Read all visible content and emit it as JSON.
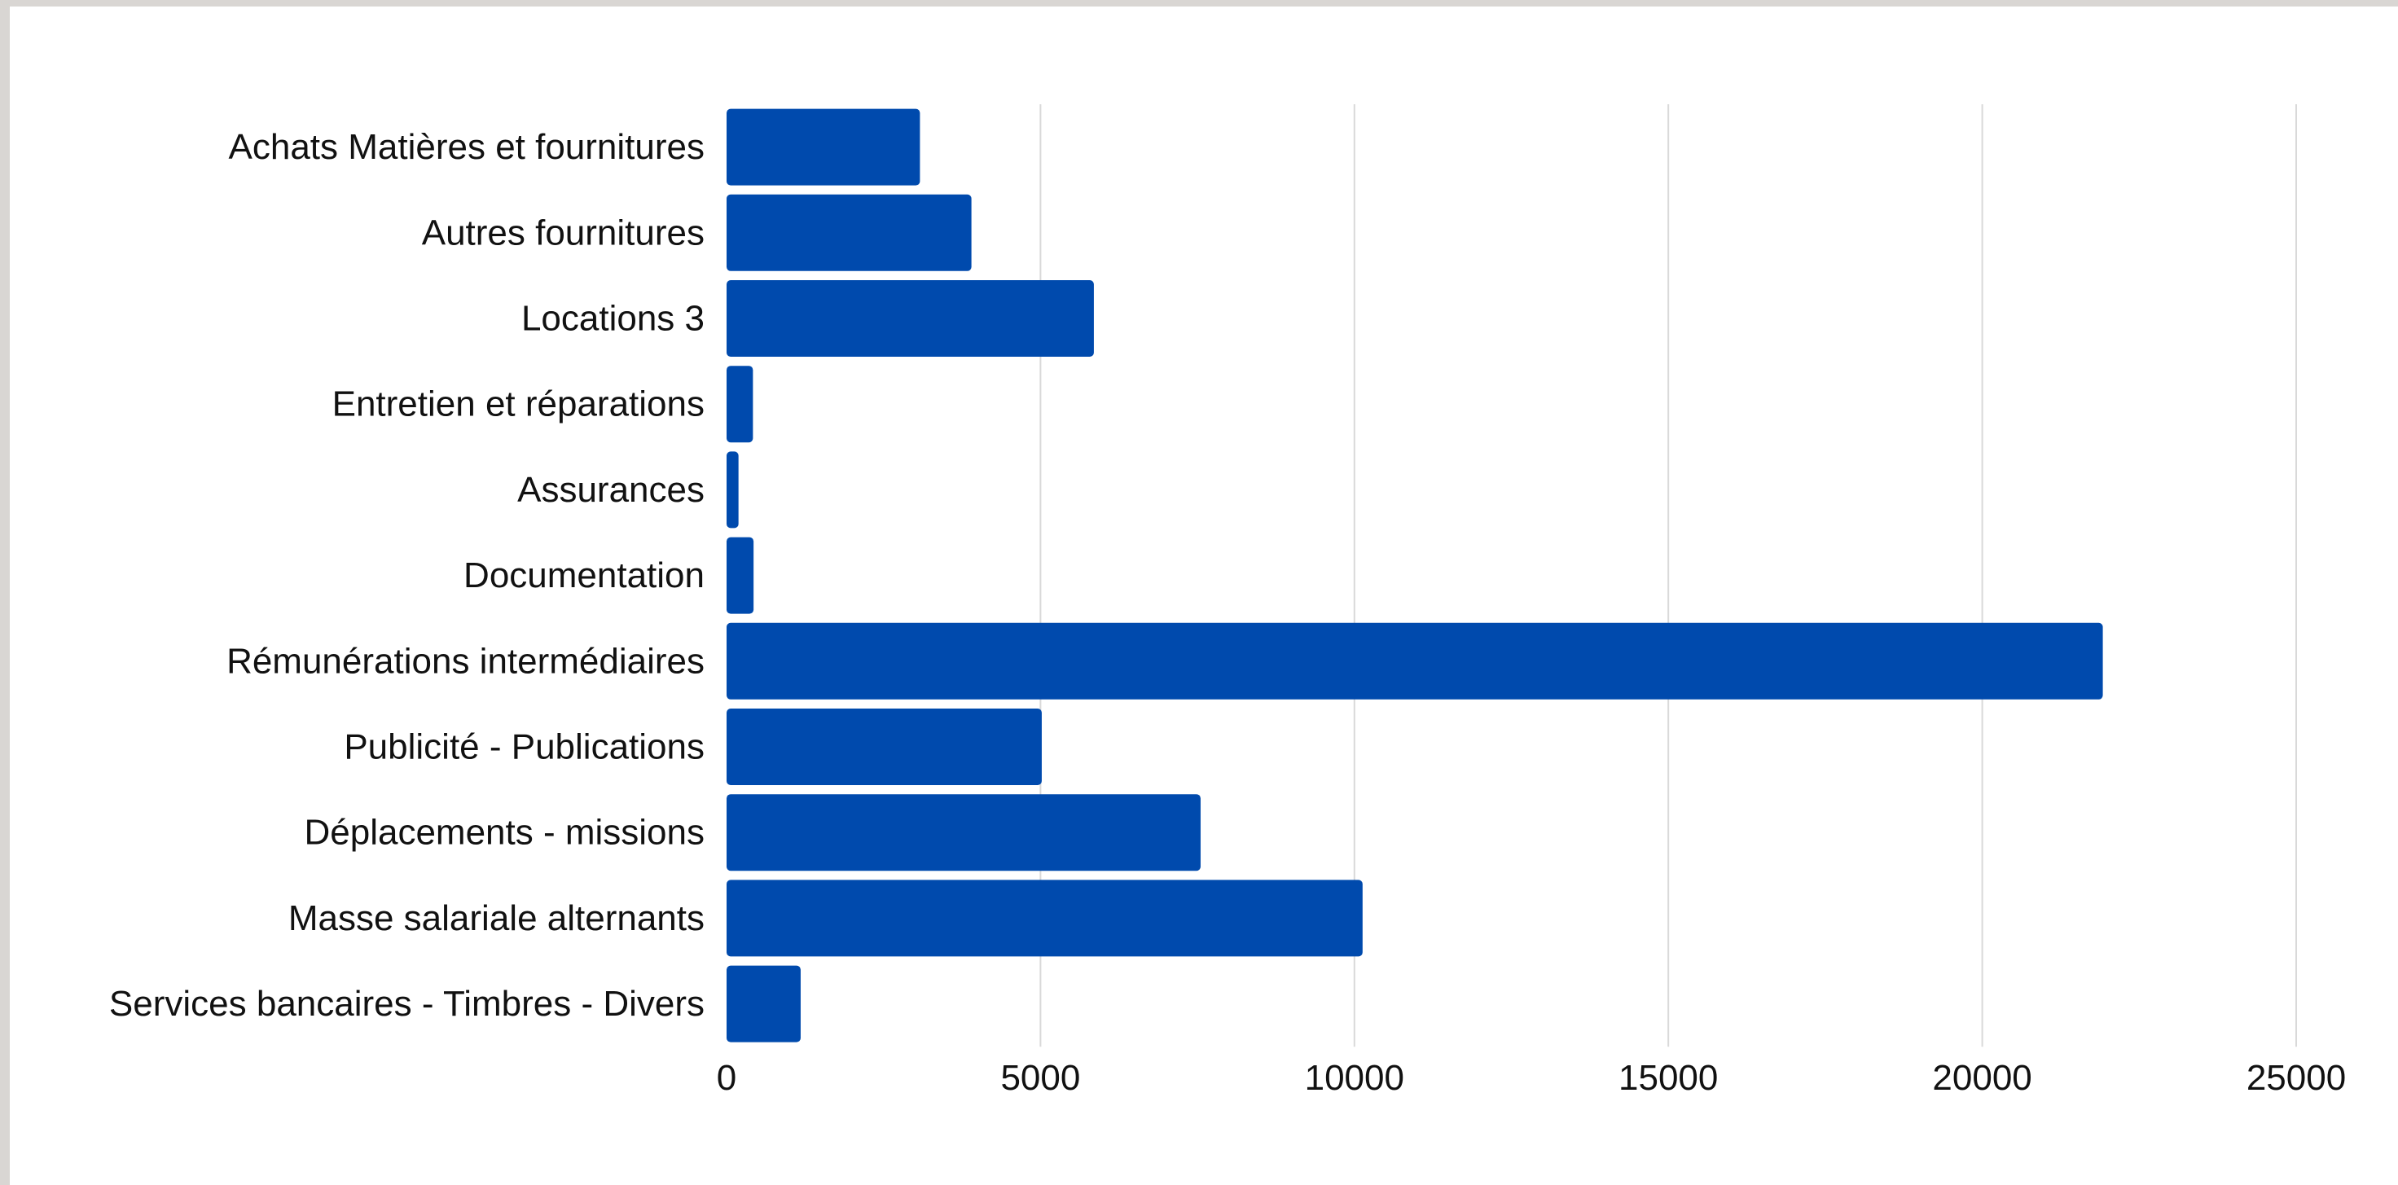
{
  "chart_data": {
    "type": "bar",
    "orientation": "horizontal",
    "title": "",
    "xlabel": "",
    "ylabel": "",
    "categories": [
      "Achats Matières et fournitures",
      "Autres fournitures",
      "Locations 3",
      "Entretien et réparations",
      "Assurances",
      "Documentation",
      "Rémunérations intermédiaires",
      "Publicité - Publications",
      "Déplacements - missions",
      "Masse salariale alternants",
      "Services bancaires - Timbres - Divers"
    ],
    "values": [
      3080,
      3900,
      5850,
      420,
      190,
      430,
      21920,
      5020,
      7550,
      10130,
      1180
    ],
    "xlim": [
      0,
      25000
    ],
    "xticks": [
      0,
      5000,
      10000,
      15000,
      20000,
      25000
    ],
    "xtick_labels": [
      "0",
      "5000",
      "10000",
      "15000",
      "20000",
      "25000"
    ],
    "grid": "vertical",
    "legend": "none",
    "bar_color": "#004aad",
    "grid_color": "#d9d9d9"
  }
}
